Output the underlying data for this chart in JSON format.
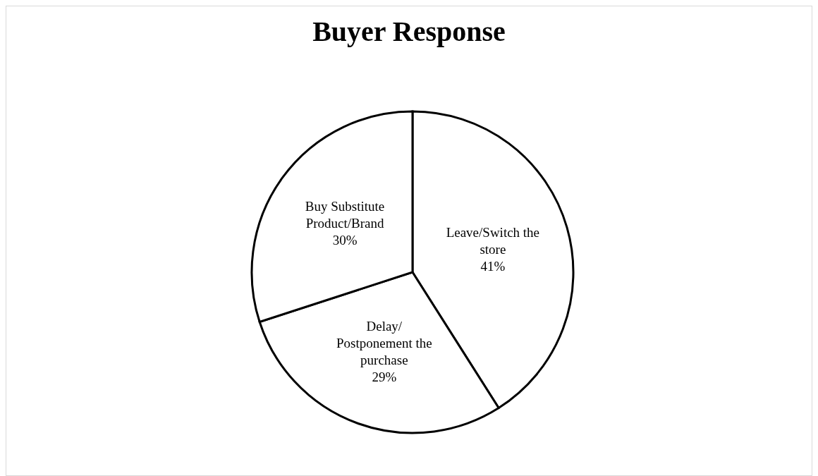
{
  "chart_data": {
    "type": "pie",
    "title": "Buyer Response",
    "categories": [
      "Leave/Switch the store",
      "Delay/ Postponement the purchase",
      "Buy Substitute Product/Brand"
    ],
    "values": [
      41,
      29,
      30
    ],
    "value_labels": [
      "41%",
      "29%",
      "30%"
    ],
    "colors": [
      "#ffffff",
      "#ffffff",
      "#ffffff"
    ],
    "legend": false
  }
}
